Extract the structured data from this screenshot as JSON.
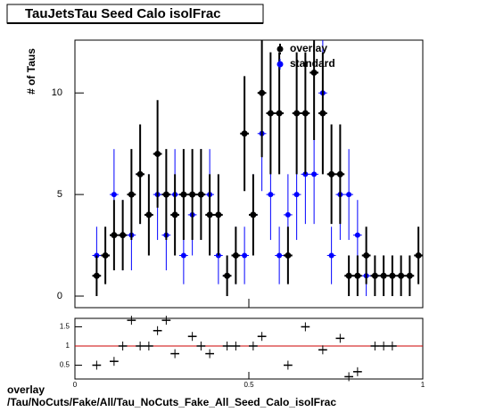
{
  "chart_data": {
    "type": "errorbar",
    "title": "TauJetsTau Seed Calo isolFrac",
    "ylabel": "# of Taus",
    "xlim": [
      0,
      1
    ],
    "ylim": [
      -0.57,
      12.6
    ],
    "yticks": [
      0,
      5,
      10
    ],
    "nbins": 40,
    "series": [
      {
        "name": "overlay",
        "color": "#000000",
        "values": [
          0,
          0,
          1,
          2,
          3,
          3,
          5,
          6,
          4,
          7,
          5,
          4,
          5,
          5,
          5,
          4,
          4,
          1,
          2,
          8,
          4,
          10,
          9,
          9,
          2,
          9,
          9,
          11,
          9,
          6,
          6,
          1,
          1,
          2,
          1,
          1,
          1,
          1,
          1,
          2
        ]
      },
      {
        "name": "standard",
        "color": "#0000ff",
        "values": [
          0,
          0,
          2,
          0,
          5,
          3,
          3,
          6,
          4,
          5,
          3,
          5,
          2,
          4,
          5,
          5,
          2,
          1,
          2,
          2,
          4,
          8,
          5,
          2,
          4,
          5,
          6,
          6,
          10,
          2,
          5,
          5,
          3,
          1,
          1,
          1,
          1,
          0,
          0,
          0
        ]
      }
    ],
    "ratio": {
      "xticks": [
        0,
        0.5,
        1
      ],
      "ylim": [
        0.14,
        1.72
      ],
      "yticks": [
        0.5,
        1,
        1.5
      ],
      "reference": 1,
      "reference_color": "#cc0000",
      "values": [
        null,
        null,
        0.5,
        null,
        0.6,
        1,
        1.67,
        1,
        1,
        1.4,
        1.67,
        0.8,
        null,
        1.25,
        1,
        0.8,
        null,
        1,
        1,
        null,
        1,
        1.25,
        null,
        null,
        0.5,
        null,
        1.5,
        null,
        0.9,
        null,
        1.2,
        0.2,
        0.33,
        null,
        1,
        1,
        1,
        null,
        null,
        null
      ]
    },
    "footer": [
      "overlay",
      "/Tau/NoCuts/Fake/All/Tau_NoCuts_Fake_All_Seed_Calo_isolFrac"
    ]
  }
}
